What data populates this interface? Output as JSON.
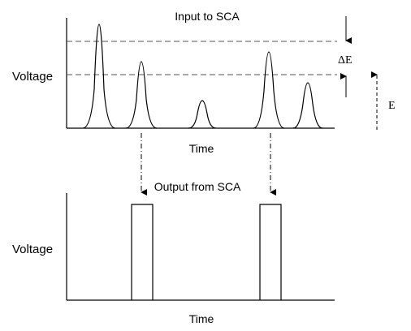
{
  "top_panel": {
    "title": "Input to SCA",
    "ylabel": "Voltage",
    "xlabel": "Time",
    "window_label": "ΔE",
    "threshold_label": "E",
    "pulse_heights": [
      1.0,
      0.62,
      0.27,
      0.71,
      0.42
    ],
    "lower_level": 0.52,
    "upper_level": 0.85
  },
  "bottom_panel": {
    "title": "Output from SCA",
    "ylabel": "Voltage",
    "xlabel": "Time",
    "output_pulses": 2
  },
  "colors": {
    "ink": "#000000",
    "background": "#ffffff"
  }
}
